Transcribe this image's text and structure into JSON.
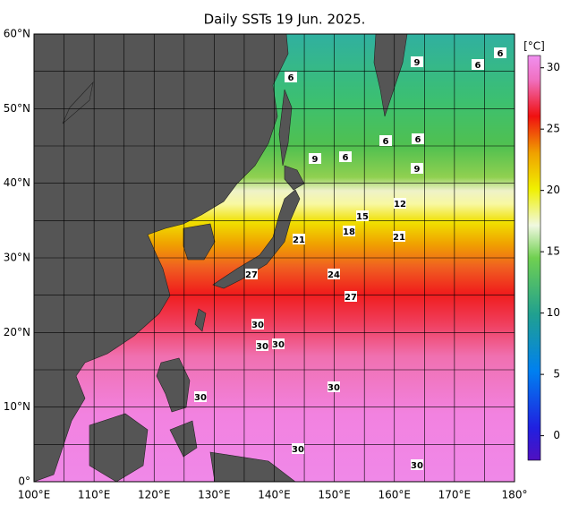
{
  "header": {
    "title": "Daily SSTs 19 Jun. 2025."
  },
  "map": {
    "lat_labels": [
      "0°",
      "10°N",
      "20°N",
      "30°N",
      "40°N",
      "50°N",
      "60°N"
    ],
    "lon_labels": [
      "100°E",
      "110°E",
      "120°E",
      "130°E",
      "140°E",
      "150°E",
      "160°E",
      "170°E",
      "180°"
    ]
  },
  "colorbar": {
    "unit": "[°C]",
    "range": [
      -2,
      31
    ],
    "ticks": [
      0,
      5,
      10,
      15,
      20,
      25,
      30
    ]
  },
  "contour_labels": [
    "6",
    "9",
    "6",
    "6",
    "6",
    "6",
    "9",
    "6",
    "9",
    "12",
    "15",
    "18",
    "21",
    "21",
    "24",
    "27",
    "27",
    "30",
    "30",
    "30",
    "30",
    "30",
    "30",
    "30"
  ]
}
